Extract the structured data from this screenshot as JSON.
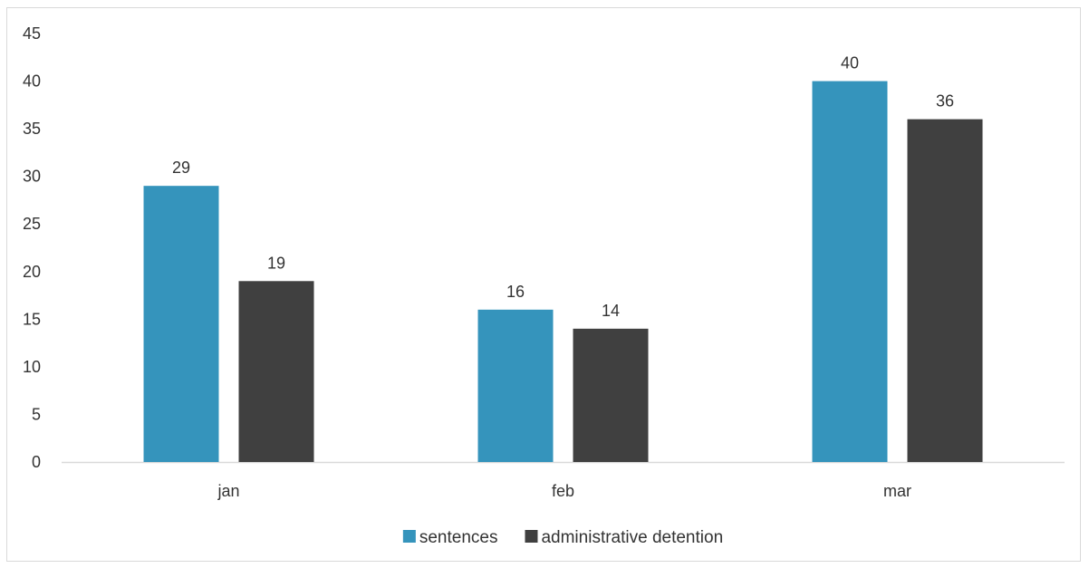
{
  "chart_data": {
    "type": "bar",
    "categories": [
      "jan",
      "feb",
      "mar"
    ],
    "series": [
      {
        "name": "sentences",
        "values": [
          29,
          16,
          40
        ],
        "color": "#3594bc"
      },
      {
        "name": "administrative detention",
        "values": [
          19,
          14,
          36
        ],
        "color": "#404040"
      }
    ],
    "ylim": [
      0,
      45
    ],
    "yticks": [
      0,
      5,
      10,
      15,
      20,
      25,
      30,
      35,
      40,
      45
    ],
    "title": "",
    "xlabel": "",
    "ylabel": "",
    "grid": false,
    "legend_position": "bottom",
    "data_labels": true
  }
}
